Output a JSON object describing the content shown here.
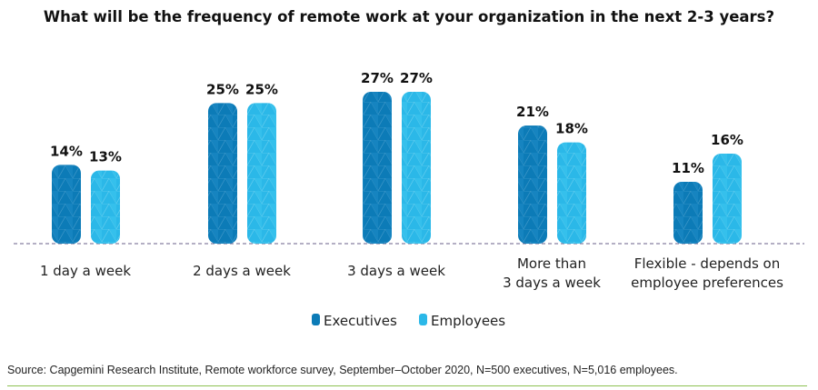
{
  "chart_data": {
    "type": "bar",
    "title": "What will be the frequency of remote work at your organization in the next 2-3 years?",
    "categories": [
      [
        "1 day a week"
      ],
      [
        "2 days a week"
      ],
      [
        "3 days a week"
      ],
      [
        "More than",
        "3 days a week"
      ],
      [
        "Flexible - depends on",
        "employee preferences"
      ]
    ],
    "series": [
      {
        "name": "Executives",
        "values": [
          14,
          25,
          27,
          21,
          11
        ],
        "color": "#0c7bb7"
      },
      {
        "name": "Employees",
        "values": [
          13,
          25,
          27,
          18,
          16
        ],
        "color": "#2bb8e8"
      }
    ],
    "value_suffix": "%",
    "ylim": [
      0,
      27
    ],
    "legend": "bottom-center",
    "grid": false
  },
  "source": "Source: Capgemini Research Institute, Remote workforce survey, September–October 2020, N=500 executives, N=5,016 employees."
}
